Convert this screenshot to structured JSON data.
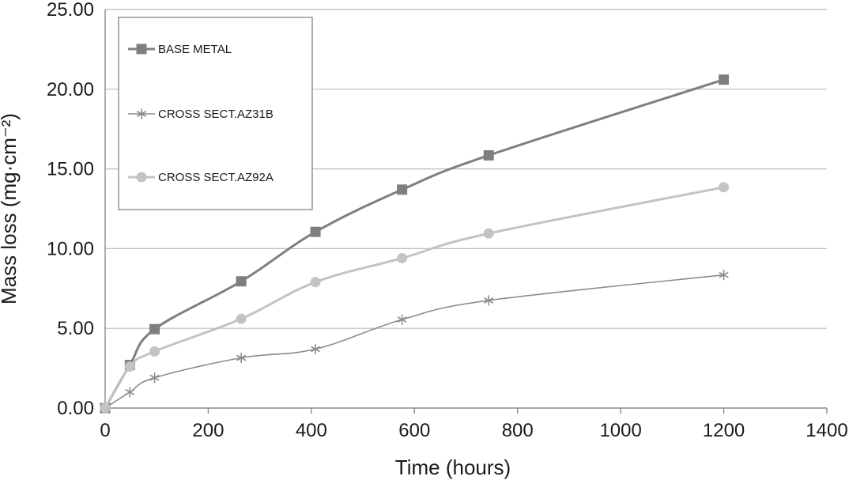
{
  "chart_data": {
    "type": "line",
    "xlabel": "Time (hours)",
    "ylabel": "Mass loss (mg·cm⁻²)",
    "xlim": [
      0,
      1400
    ],
    "ylim": [
      0,
      25
    ],
    "x_ticks": [
      "0",
      "200",
      "400",
      "600",
      "800",
      "1000",
      "1200",
      "1400"
    ],
    "y_ticks": [
      "0.00",
      "5.00",
      "10.00",
      "15.00",
      "20.00",
      "25.00"
    ],
    "grid": "horizontal",
    "legend_position": "top-left",
    "series": [
      {
        "name": "BASE METAL",
        "marker": "square",
        "color": "#7f7f7f",
        "x": [
          0,
          48,
          96,
          264,
          408,
          576,
          744,
          1200
        ],
        "y": [
          0,
          2.7,
          4.95,
          7.95,
          11.05,
          13.7,
          15.85,
          20.6
        ]
      },
      {
        "name": "CROSS SECT.AZ31B",
        "marker": "asterisk",
        "color": "#8c8c8c",
        "x": [
          0,
          48,
          96,
          264,
          408,
          576,
          744,
          1200
        ],
        "y": [
          0,
          1.0,
          1.9,
          3.15,
          3.7,
          5.55,
          6.75,
          8.35
        ]
      },
      {
        "name": "CROSS SECT.AZ92A",
        "marker": "circle",
        "color": "#c3c3c3",
        "x": [
          0,
          48,
          96,
          264,
          408,
          576,
          744,
          1200
        ],
        "y": [
          0,
          2.6,
          3.55,
          5.6,
          7.9,
          9.4,
          10.95,
          13.85
        ]
      }
    ]
  }
}
